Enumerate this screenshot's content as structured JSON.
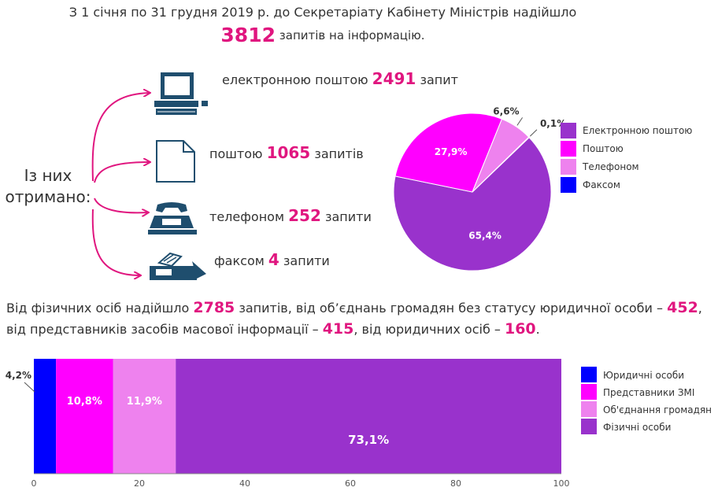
{
  "header": {
    "line1": "З 1 січня по 31 грудня 2019 р. до Секретаріату Кабінету Міністрів надійшло",
    "total": "3812",
    "line2_suffix": "запитів на інформацію."
  },
  "received_label": [
    "Із них",
    "отримано:"
  ],
  "channels": [
    {
      "icon": "computer-icon",
      "before": "електронною поштою",
      "value": "2491",
      "after": "запит"
    },
    {
      "icon": "document-icon",
      "before": "поштою",
      "value": "1065",
      "after": "запитів"
    },
    {
      "icon": "telephone-icon",
      "before": "телефоном",
      "value": "252",
      "after": "запити"
    },
    {
      "icon": "fax-icon",
      "before": "факсом",
      "value": "4",
      "after": "запити"
    }
  ],
  "sources_paragraph": {
    "p1": "Від фізичних осіб надійшло",
    "v1": "2785",
    "p2": "запитів, від об’єднань громадян без статусу юридичної особи –",
    "v2": "452",
    "p3": ",",
    "p4": "від представників засобів масової інформації –",
    "v3": "415",
    "p5": ", від юридичних осіб –",
    "v4": "160",
    "p6": "."
  },
  "colors": {
    "highlight": "#e0167f",
    "purple": "#9932cc",
    "magenta": "#ff00ff",
    "violet": "#ee82ee",
    "blue": "#0000ff",
    "arrow": "#e0167f",
    "icon": "#1f4e6e"
  },
  "chart_data": [
    {
      "type": "pie",
      "slices": [
        {
          "label": "Електронною поштою",
          "value": 65.4,
          "display": "65,4%",
          "color": "#9932cc"
        },
        {
          "label": "Поштою",
          "value": 27.9,
          "display": "27,9%",
          "color": "#ff00ff"
        },
        {
          "label": "Телефоном",
          "value": 6.6,
          "display": "6,6%",
          "color": "#ee82ee"
        },
        {
          "label": "Факсом",
          "value": 0.1,
          "display": "0,1%",
          "color": "#0000ff"
        }
      ],
      "legend_position": "right"
    },
    {
      "type": "bar",
      "orientation": "horizontal",
      "stacked": true,
      "series": [
        {
          "name": "Юридичні особи",
          "value": 4.2,
          "display": "4,2%",
          "color": "#0000ff"
        },
        {
          "name": "Представники ЗМІ",
          "value": 10.8,
          "display": "10,8%",
          "color": "#ff00ff"
        },
        {
          "name": "Об'єднання громадян",
          "value": 11.9,
          "display": "11,9%",
          "color": "#ee82ee"
        },
        {
          "name": "Фізичні особи",
          "value": 73.1,
          "display": "73,1%",
          "color": "#9932cc"
        }
      ],
      "legend_order": [
        "Юридичні особи",
        "Представники ЗМІ",
        "Об'єднання громадян",
        "Фізичні особи"
      ],
      "xlim": [
        0,
        100
      ],
      "xticks": [
        0,
        20,
        40,
        60,
        80,
        100
      ],
      "legend_position": "right"
    }
  ]
}
